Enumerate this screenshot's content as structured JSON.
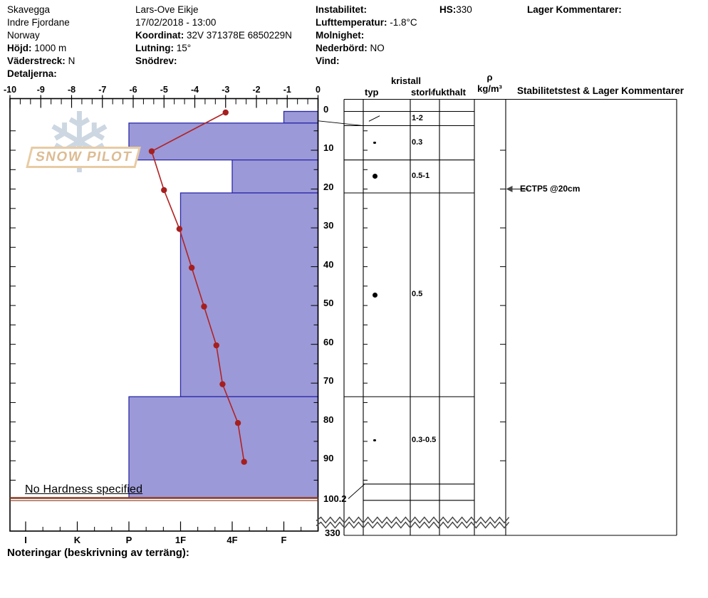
{
  "title_block": {
    "col1": [
      {
        "label": "",
        "value": "Skavegga"
      },
      {
        "label": "",
        "value": "Indre Fjordane"
      },
      {
        "label": "",
        "value": "Norway"
      },
      {
        "label": "Höjd:",
        "value": " 1000 m"
      },
      {
        "label": "Väderstreck:",
        "value": " N"
      },
      {
        "label": "Detaljerna:",
        "value": ""
      }
    ],
    "col2": [
      {
        "label": "",
        "value": "Lars-Ove Eikje"
      },
      {
        "label": "",
        "value": "17/02/2018 - 13:00"
      },
      {
        "label": "Koordinat:",
        "value": " 32V 371378E 6850229N"
      },
      {
        "label": "Lutning:",
        "value": " 15°"
      },
      {
        "label": "Snödrev:",
        "value": ""
      }
    ],
    "col3": [
      {
        "label": "Instabilitet:",
        "value": ""
      },
      {
        "label": "Lufttemperatur:",
        "value": " -1.8°C"
      },
      {
        "label": "Molnighet:",
        "value": ""
      },
      {
        "label": "Nederbörd:",
        "value": " NO"
      },
      {
        "label": "Vind:",
        "value": ""
      }
    ],
    "hs_label": "HS:",
    "hs_value": "330",
    "layer_comments_label": "Lager Kommentarer:"
  },
  "watermark": {
    "text": "SNOW PILOT",
    "snowflake_icon": "❄"
  },
  "table_headers": {
    "kristall": "kristall",
    "typ": "typ",
    "storlek": "storlek",
    "fukthalt": "fukthalt",
    "rho": "ρ",
    "rho_unit": "kg/m³",
    "stability": "Stabilitetstest & Lager Kommentarer"
  },
  "annotations": {
    "no_hardness": "No Hardness specified",
    "notes_label": "Noteringar (beskrivning av terräng):"
  },
  "chart_data": {
    "type": "snow-profile",
    "temp_axis": {
      "unit": "°C",
      "ticks": [
        -10,
        -9,
        -8,
        -7,
        -6,
        -5,
        -4,
        -3,
        -2,
        -1,
        0
      ],
      "range": [
        -10,
        0
      ]
    },
    "hardness_axis": {
      "categories": [
        "I",
        "K",
        "P",
        "1F",
        "4F",
        "F"
      ]
    },
    "depth_axis": {
      "unit": "cm",
      "ticks": [
        0,
        10,
        20,
        30,
        40,
        50,
        60,
        70,
        80,
        90
      ],
      "pit_depth_label": "100.2",
      "total_snow_height_label": "330"
    },
    "temperature_profile": {
      "depth_cm": [
        0,
        10,
        20,
        30,
        40,
        50,
        60,
        70,
        80,
        90
      ],
      "temp_c": [
        -3.0,
        -5.4,
        -5.0,
        -4.5,
        -4.1,
        -3.7,
        -3.3,
        -3.1,
        -2.6,
        -2.4
      ]
    },
    "layers": [
      {
        "top_cm": 0,
        "bottom_cm": 3,
        "hardness": "F",
        "grain_type": "slash",
        "grain_size_mm": "1-2"
      },
      {
        "top_cm": 3,
        "bottom_cm": 12.5,
        "hardness": "P",
        "grain_type": "dot-small",
        "grain_size_mm": "0.3"
      },
      {
        "top_cm": 12.5,
        "bottom_cm": 21,
        "hardness": "4F",
        "grain_type": "dot-large",
        "grain_size_mm": "0.5-1"
      },
      {
        "top_cm": 21,
        "bottom_cm": 73.5,
        "hardness": "1F",
        "grain_type": "dot-large",
        "grain_size_mm": "0.5"
      },
      {
        "top_cm": 73.5,
        "bottom_cm": 96,
        "hardness": "P",
        "grain_type": "dot-small",
        "grain_size_mm": "0.3-0.5"
      },
      {
        "top_cm": 96,
        "bottom_cm": 100.2,
        "hardness": null,
        "grain_type": null,
        "grain_size_mm": ""
      }
    ],
    "stability_tests": [
      {
        "text": "ECTP5 @20cm",
        "depth_cm": 20
      }
    ],
    "colors": {
      "bar_fill": "#9b99d8",
      "bar_border": "#2b29a8",
      "temp_line": "#b22222",
      "temp_dot": "#a51f1f",
      "ground_line": "#8a3a21",
      "zigzag": "#4a4a4a",
      "watermark_blue": "#ccd7e2",
      "watermark_tan": "#ddbc93"
    }
  }
}
